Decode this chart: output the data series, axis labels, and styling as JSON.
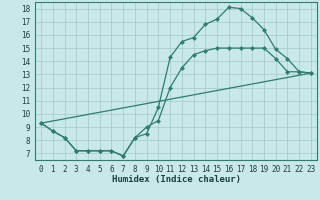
{
  "xlabel": "Humidex (Indice chaleur)",
  "bg_color": "#c8e8ea",
  "line_color": "#2e7d6e",
  "grid_color": "#a8cdd0",
  "xlim": [
    -0.5,
    23.5
  ],
  "ylim": [
    6.5,
    18.5
  ],
  "xticks": [
    0,
    1,
    2,
    3,
    4,
    5,
    6,
    7,
    8,
    9,
    10,
    11,
    12,
    13,
    14,
    15,
    16,
    17,
    18,
    19,
    20,
    21,
    22,
    23
  ],
  "yticks": [
    7,
    8,
    9,
    10,
    11,
    12,
    13,
    14,
    15,
    16,
    17,
    18
  ],
  "curve1_x": [
    0,
    1,
    2,
    3,
    4,
    5,
    6,
    7,
    8,
    9,
    10,
    11,
    12,
    13,
    14,
    15,
    16,
    17,
    18,
    19,
    20,
    21,
    22,
    23
  ],
  "curve1_y": [
    9.3,
    8.7,
    8.2,
    7.2,
    7.2,
    7.2,
    7.2,
    6.8,
    8.2,
    8.5,
    10.5,
    14.3,
    15.5,
    15.8,
    16.8,
    17.2,
    18.1,
    18.0,
    17.3,
    16.4,
    14.9,
    14.2,
    13.2,
    13.1
  ],
  "curve2_x": [
    0,
    1,
    2,
    3,
    4,
    5,
    6,
    7,
    8,
    9,
    10,
    11,
    12,
    13,
    14,
    15,
    16,
    17,
    18,
    19,
    20,
    21,
    22,
    23
  ],
  "curve2_y": [
    9.3,
    8.7,
    8.2,
    7.2,
    7.2,
    7.2,
    7.2,
    6.8,
    8.2,
    9.0,
    9.5,
    12.0,
    13.5,
    14.5,
    14.8,
    15.0,
    15.0,
    15.0,
    15.0,
    15.0,
    14.2,
    13.2,
    13.2,
    13.1
  ],
  "curve3_x": [
    0,
    23
  ],
  "curve3_y": [
    9.3,
    13.1
  ],
  "label_color": "#1a4040",
  "tick_fontsize": 5.5,
  "xlabel_fontsize": 6.5
}
